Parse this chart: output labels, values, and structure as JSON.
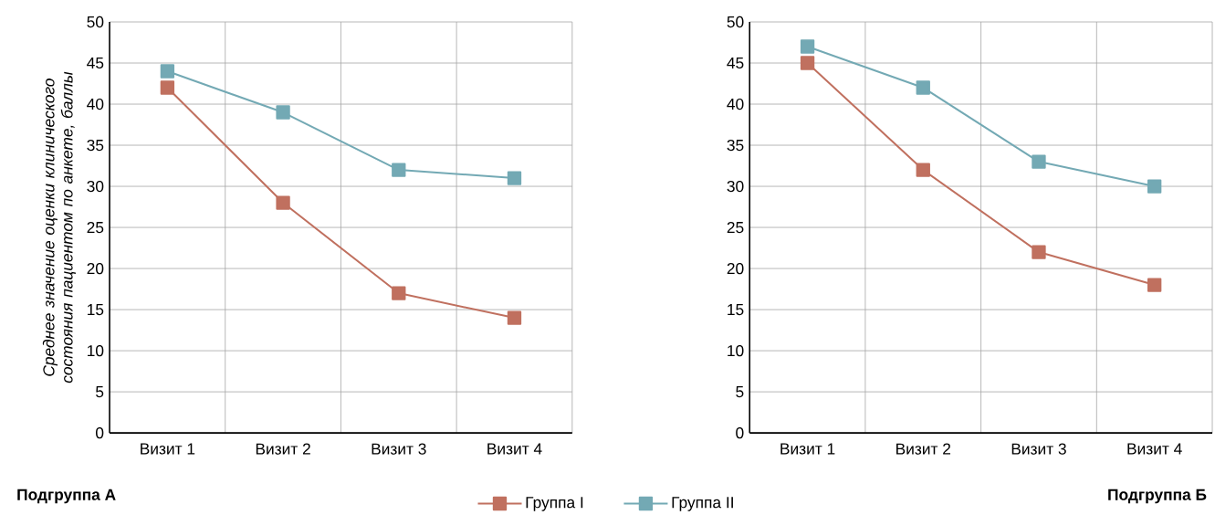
{
  "chart_data": [
    {
      "type": "line",
      "title": "Подгруппа А",
      "ylabel": "Среднее значение оценки клинического состояния пациентом по анкете, баллы",
      "categories": [
        "Визит 1",
        "Визит 2",
        "Визит 3",
        "Визит 4"
      ],
      "series": [
        {
          "name": "Группа I",
          "color": "#c0705f",
          "values": [
            42,
            28,
            17,
            14
          ]
        },
        {
          "name": "Группа II",
          "color": "#73a9b4",
          "values": [
            44,
            39,
            32,
            31
          ]
        }
      ],
      "ylim": [
        0,
        50
      ],
      "yticks": [
        0,
        5,
        10,
        15,
        20,
        25,
        30,
        35,
        40,
        45,
        50
      ],
      "grid": true,
      "legend": "bottom",
      "marker": "square",
      "line_style": "solid"
    },
    {
      "type": "line",
      "title": "Подгруппа Б",
      "categories": [
        "Визит 1",
        "Визит 2",
        "Визит 3",
        "Визит 4"
      ],
      "series": [
        {
          "color": "#c0705f",
          "values": [
            45,
            32,
            22,
            18
          ]
        },
        {
          "color": "#73a9b4",
          "values": [
            47,
            42,
            33,
            30
          ]
        }
      ],
      "ylim": [
        0,
        50
      ],
      "yticks": [
        0,
        5,
        10,
        15,
        20,
        25,
        30,
        35,
        40,
        45,
        50
      ],
      "grid": true,
      "marker": "square",
      "line_style": "solid"
    }
  ]
}
